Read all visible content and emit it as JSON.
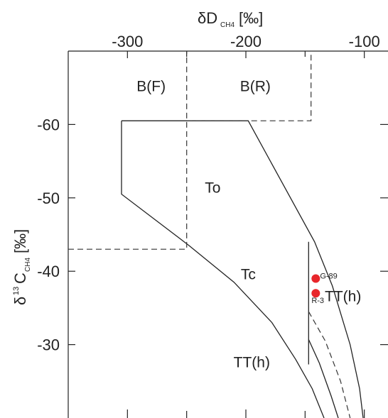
{
  "chart_data": {
    "type": "scatter",
    "title": "",
    "x_axis": {
      "label_prefix": "δD",
      "label_subscript": "CH4",
      "label_units": "[‰]",
      "position": "top",
      "ticks": [
        -300,
        -200,
        -100
      ],
      "tick_labels": [
        "-300",
        "-200",
        "-100"
      ],
      "range": [
        -350,
        -80
      ]
    },
    "y_axis": {
      "label_prefix": "δ",
      "label_superscript": "13",
      "label_main": "C",
      "label_subscript": "CH4",
      "label_units": "[‰]",
      "ticks": [
        -60,
        -50,
        -40,
        -30
      ],
      "tick_labels": [
        "-60",
        "-50",
        "-40",
        "-30"
      ],
      "range": [
        -70,
        -20
      ],
      "inverted": true
    },
    "regions": [
      {
        "label": "B(F)",
        "x": -280,
        "y": -65.3
      },
      {
        "label": "B(R)",
        "x": -192,
        "y": -65.3
      },
      {
        "label": "To",
        "x": -228,
        "y": -51.5
      },
      {
        "label": "Tc",
        "x": -198,
        "y": -39.7
      },
      {
        "label": "TT(h)",
        "x": -118,
        "y": -36.7
      },
      {
        "label": "TT(h)",
        "x": -195,
        "y": -27.7
      }
    ],
    "boundaries": {
      "solid": [
        {
          "name": "to-field",
          "points": [
            [
              -305,
              -60.5
            ],
            [
              -198,
              -60.5
            ],
            [
              -142,
              -44
            ],
            [
              -127,
              -38
            ],
            [
              -112,
              -30
            ],
            [
              -104,
              -24
            ],
            [
              -101,
              -20
            ]
          ]
        },
        {
          "name": "to-left",
          "points": [
            [
              -305,
              -60.5
            ],
            [
              -305,
              -50.5
            ],
            [
              -248,
              -43.5
            ],
            [
              -210,
              -38.5
            ],
            [
              -178,
              -33
            ],
            [
              -158,
              -28
            ],
            [
              -144,
              -24
            ],
            [
              -134,
              -20
            ]
          ]
        },
        {
          "name": "tth-left",
          "points": [
            [
              -147,
              -44
            ],
            [
              -147,
              -27.3
            ]
          ]
        },
        {
          "name": "tth-inner",
          "points": [
            [
              -147,
              -30.7
            ],
            [
              -138,
              -27.5
            ],
            [
              -128,
              -23
            ],
            [
              -122,
              -20
            ]
          ]
        }
      ],
      "dashed": [
        {
          "name": "b-box",
          "points": [
            [
              -350,
              -43
            ],
            [
              -250,
              -43
            ],
            [
              -250,
              -70
            ]
          ]
        },
        {
          "name": "b-right",
          "points": [
            [
              -250,
              -60.5
            ],
            [
              -145,
              -60.5
            ],
            [
              -145,
              -70
            ]
          ]
        },
        {
          "name": "tth-mid",
          "points": [
            [
              -147,
              -34.5
            ],
            [
              -133,
              -30.5
            ],
            [
              -120,
              -25
            ],
            [
              -112,
              -20
            ]
          ]
        }
      ]
    },
    "samples": [
      {
        "label": "G-89",
        "x": -141,
        "y": -39,
        "color": "#e8262b"
      },
      {
        "label": "R-3",
        "x": -141,
        "y": -37,
        "color": "#e8262b"
      }
    ],
    "grid": false,
    "legend": "none"
  }
}
